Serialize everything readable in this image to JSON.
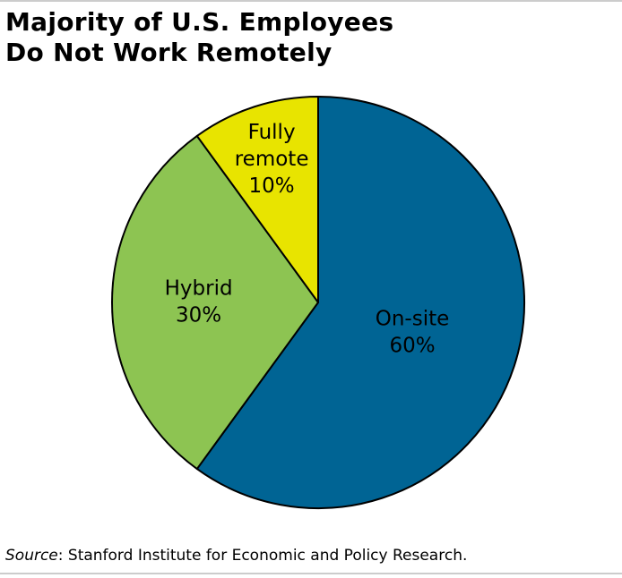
{
  "title_lines": [
    "Majority of U.S. Employees",
    "Do Not Work Remotely"
  ],
  "source": {
    "label": "Source",
    "text": ": Stanford Institute for Economic and Policy Research."
  },
  "chart_data": {
    "type": "pie",
    "title": "Majority of U.S. Employees Do Not Work Remotely",
    "start": "12 o'clock",
    "direction": "clockwise",
    "slices": [
      {
        "name": "On-site",
        "value": 60,
        "display": "60%",
        "color": "#006494",
        "label_lines": [
          "On-site",
          "60%"
        ]
      },
      {
        "name": "Hybrid",
        "value": 30,
        "display": "30%",
        "color": "#8dc452",
        "label_lines": [
          "Hybrid",
          "30%"
        ]
      },
      {
        "name": "Fully remote",
        "value": 10,
        "display": "10%",
        "color": "#e8e400",
        "label_lines": [
          "Fully",
          "remote",
          "10%"
        ]
      }
    ]
  }
}
